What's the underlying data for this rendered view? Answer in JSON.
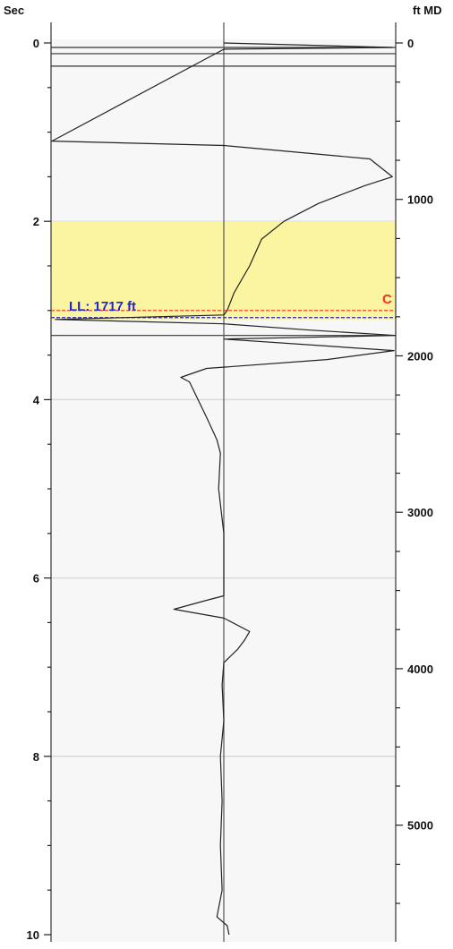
{
  "chart_data": {
    "type": "line",
    "left_axis": {
      "label": "Sec",
      "range": [
        0,
        10
      ],
      "tick_labels": [
        "0",
        "2",
        "4",
        "6",
        "8",
        "10"
      ],
      "gridlines": [
        2,
        4,
        6,
        8
      ]
    },
    "right_axis": {
      "label": "ft MD",
      "range": [
        0,
        5700
      ],
      "tick_labels": [
        "0",
        "1000",
        "2000",
        "3000",
        "4000",
        "5000"
      ],
      "tick_values": [
        0,
        1000,
        2000,
        3000,
        4000,
        5000
      ]
    },
    "shaded_zone": {
      "from_sec": 2.0,
      "to_sec": 3.1,
      "color": "#fbf5a1"
    },
    "marker_lines": [
      {
        "name": "C",
        "label": "C",
        "sec": 3.0,
        "color": "#ff2a1a",
        "style": "dashed"
      },
      {
        "name": "LL",
        "label": "LL: 1717 ft",
        "sec": 3.08,
        "color": "#2424c8",
        "style": "dashed"
      }
    ],
    "horizontal_lines_sec": [
      0.05,
      0.12,
      0.26,
      3.28
    ],
    "curve": {
      "x_range": [
        -1,
        1
      ],
      "points": [
        [
          0.0,
          0.0
        ],
        [
          0.02,
          0.4
        ],
        [
          0.05,
          0.98
        ],
        [
          0.07,
          0.0
        ],
        [
          1.1,
          -1.0
        ],
        [
          1.15,
          0.0
        ],
        [
          1.3,
          0.85
        ],
        [
          1.5,
          0.98
        ],
        [
          1.6,
          0.82
        ],
        [
          1.8,
          0.55
        ],
        [
          2.0,
          0.35
        ],
        [
          2.2,
          0.22
        ],
        [
          2.5,
          0.15
        ],
        [
          2.8,
          0.06
        ],
        [
          3.0,
          0.02
        ],
        [
          3.05,
          0.0
        ],
        [
          3.1,
          -0.98
        ],
        [
          3.15,
          0.0
        ],
        [
          3.22,
          0.5
        ],
        [
          3.28,
          1.0
        ],
        [
          3.32,
          0.0
        ],
        [
          3.45,
          0.99
        ],
        [
          3.55,
          0.6
        ],
        [
          3.65,
          -0.1
        ],
        [
          3.75,
          -0.25
        ],
        [
          3.8,
          -0.2
        ],
        [
          4.0,
          -0.15
        ],
        [
          4.2,
          -0.1
        ],
        [
          4.45,
          -0.04
        ],
        [
          4.6,
          -0.02
        ],
        [
          5.0,
          -0.03
        ],
        [
          5.5,
          0.0
        ],
        [
          6.0,
          0.0
        ],
        [
          6.2,
          0.0
        ],
        [
          6.25,
          -0.1
        ],
        [
          6.35,
          -0.29
        ],
        [
          6.45,
          0.0
        ],
        [
          6.6,
          0.15
        ],
        [
          6.7,
          0.12
        ],
        [
          6.8,
          0.08
        ],
        [
          6.95,
          0.0
        ],
        [
          7.2,
          -0.01
        ],
        [
          7.6,
          0.0
        ],
        [
          8.0,
          -0.02
        ],
        [
          8.5,
          -0.01
        ],
        [
          9.0,
          -0.02
        ],
        [
          9.5,
          -0.01
        ],
        [
          9.8,
          -0.04
        ],
        [
          9.9,
          0.02
        ],
        [
          10.0,
          0.03
        ]
      ]
    }
  }
}
